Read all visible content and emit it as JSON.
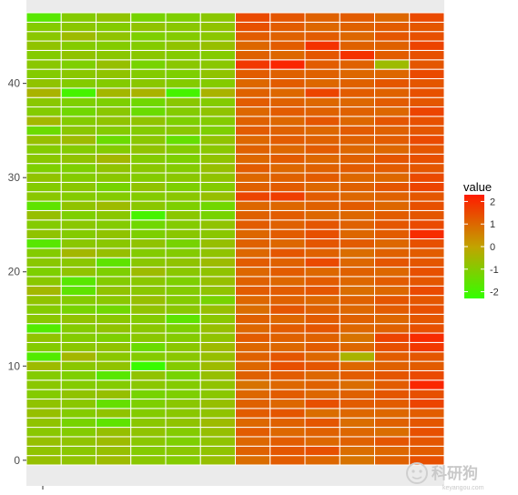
{
  "chart_data": {
    "type": "heatmap",
    "title": "",
    "xlabel": "",
    "ylabel": "",
    "n_columns": 12,
    "n_rows": 48,
    "ylim": [
      -0.5,
      47.5
    ],
    "y_ticks": [
      0,
      10,
      20,
      30,
      40
    ],
    "x_ticks": [
      ""
    ],
    "grid": true,
    "legend": {
      "title": "value",
      "position": "right",
      "limits": [
        -2.3,
        2.3
      ],
      "breaks": [
        2,
        1,
        0,
        -1,
        -2
      ],
      "break_labels": [
        "2",
        "1",
        "0",
        "-1",
        "-2"
      ],
      "colors": {
        "low": "#33ff00",
        "mid": "#c2a300",
        "high": "#ff1a00"
      }
    },
    "column_means": [
      -1,
      -1,
      -0.8,
      -1,
      -1,
      -0.8,
      1.2,
      1.2,
      1.1,
      1.0,
      1.0,
      1.3
    ],
    "row_values": [
      [
        -0.7,
        -0.8,
        -0.6,
        -0.9,
        -1.0,
        -0.7,
        0.9,
        1.2,
        1.0,
        0.8,
        1.1,
        1.4
      ],
      [
        -0.8,
        -0.9,
        -0.7,
        -1.0,
        -0.9,
        -0.8,
        1.1,
        1.3,
        1.4,
        0.9,
        1.0,
        1.2
      ],
      [
        -0.7,
        -0.8,
        -0.6,
        -0.9,
        -1.1,
        -0.8,
        1.0,
        1.2,
        1.0,
        1.1,
        1.3,
        1.3
      ],
      [
        -0.9,
        -1.0,
        -0.7,
        -0.8,
        -1.0,
        -0.7,
        1.2,
        1.0,
        1.1,
        1.0,
        0.9,
        1.4
      ],
      [
        -0.8,
        -1.2,
        -1.6,
        -0.9,
        -0.8,
        -0.6,
        1.0,
        1.1,
        1.3,
        0.9,
        1.1,
        1.3
      ],
      [
        -0.7,
        -1.0,
        -0.8,
        -1.0,
        -0.9,
        -0.8,
        1.2,
        1.3,
        0.9,
        1.0,
        1.0,
        1.2
      ],
      [
        -0.8,
        -0.9,
        -1.5,
        -1.1,
        -0.9,
        -0.7,
        1.1,
        1.0,
        1.4,
        1.2,
        1.2,
        1.6
      ],
      [
        -1.0,
        -0.8,
        -0.7,
        -1.2,
        -1.1,
        -0.9,
        1.0,
        1.2,
        1.0,
        1.1,
        1.3,
        1.4
      ],
      [
        -0.9,
        -1.0,
        -1.0,
        -0.9,
        -1.0,
        -0.8,
        0.8,
        1.0,
        1.1,
        0.9,
        1.2,
        2.1
      ],
      [
        -1.0,
        -1.1,
        -1.7,
        -0.8,
        -1.2,
        -0.7,
        1.1,
        1.2,
        1.0,
        1.2,
        1.3,
        1.5
      ],
      [
        -0.6,
        -0.9,
        -0.8,
        -2.2,
        -1.0,
        -0.6,
        1.0,
        1.4,
        1.3,
        1.0,
        1.1,
        1.2
      ],
      [
        -1.8,
        -0.5,
        -0.9,
        -1.0,
        -0.9,
        -0.7,
        1.1,
        1.3,
        1.0,
        -0.4,
        1.2,
        1.3
      ],
      [
        -1.0,
        -0.9,
        -0.8,
        -1.4,
        -0.9,
        -0.6,
        1.0,
        1.0,
        1.2,
        1.0,
        1.4,
        1.8
      ],
      [
        -0.8,
        -1.0,
        -1.1,
        -0.9,
        -1.0,
        -0.8,
        1.2,
        1.1,
        1.1,
        0.8,
        1.6,
        2.0
      ],
      [
        -1.8,
        -1.0,
        -0.8,
        -0.9,
        -1.1,
        -0.7,
        1.0,
        1.2,
        1.3,
        1.0,
        1.1,
        1.4
      ],
      [
        -0.9,
        -0.8,
        -0.9,
        -1.0,
        -1.6,
        -0.9,
        1.1,
        1.0,
        1.2,
        1.1,
        1.0,
        1.3
      ],
      [
        -1.0,
        -1.2,
        -1.3,
        -0.8,
        -0.9,
        -0.7,
        0.9,
        1.3,
        1.1,
        1.0,
        1.2,
        1.4
      ],
      [
        -0.8,
        -1.0,
        -0.9,
        -0.7,
        -1.0,
        -1.2,
        1.0,
        1.1,
        1.0,
        1.1,
        1.3,
        1.3
      ],
      [
        -0.5,
        -1.6,
        -0.8,
        -0.9,
        -1.0,
        -0.8,
        1.2,
        1.2,
        1.3,
        0.9,
        1.0,
        1.5
      ],
      [
        -0.9,
        -1.7,
        -1.0,
        -0.9,
        -1.1,
        -0.7,
        1.1,
        1.0,
        1.2,
        1.0,
        1.2,
        1.3
      ],
      [
        -1.1,
        -0.8,
        -1.1,
        -0.6,
        -0.9,
        -0.8,
        1.0,
        1.2,
        1.0,
        1.1,
        1.0,
        1.4
      ],
      [
        -0.9,
        -0.9,
        -1.6,
        -0.9,
        -0.8,
        -0.6,
        1.2,
        1.1,
        1.5,
        1.0,
        1.3,
        1.3
      ],
      [
        -1.0,
        -0.5,
        -0.7,
        -1.0,
        -1.0,
        -0.8,
        1.0,
        1.3,
        1.1,
        0.9,
        1.1,
        1.2
      ],
      [
        -1.7,
        -0.9,
        -0.9,
        -0.8,
        -1.2,
        -0.7,
        1.1,
        1.0,
        1.3,
        1.2,
        1.0,
        1.4
      ],
      [
        -0.8,
        -1.0,
        -0.8,
        -1.1,
        -0.9,
        -0.9,
        1.0,
        1.2,
        1.4,
        1.0,
        1.2,
        2.0
      ],
      [
        -1.0,
        -0.9,
        -1.0,
        -1.3,
        -1.0,
        -0.8,
        1.2,
        1.1,
        1.3,
        1.1,
        1.3,
        1.5
      ],
      [
        -0.7,
        -1.1,
        -0.9,
        -2.0,
        -0.9,
        -1.2,
        1.1,
        1.2,
        1.0,
        1.0,
        1.2,
        1.3
      ],
      [
        -1.6,
        -0.8,
        -0.6,
        -0.9,
        -1.1,
        -1.3,
        1.0,
        1.0,
        1.1,
        1.2,
        1.0,
        1.4
      ],
      [
        -0.9,
        -1.0,
        -1.0,
        -1.0,
        -0.9,
        -0.7,
        1.6,
        1.7,
        1.2,
        1.0,
        1.1,
        1.3
      ],
      [
        -1.0,
        -0.9,
        -1.2,
        -0.8,
        -1.1,
        -1.0,
        1.1,
        1.2,
        1.0,
        1.1,
        1.3,
        1.6
      ],
      [
        -0.8,
        -1.0,
        -0.9,
        -1.0,
        -0.9,
        -0.8,
        1.0,
        1.1,
        1.2,
        1.0,
        1.0,
        1.5
      ],
      [
        -1.1,
        -1.1,
        -0.8,
        -0.9,
        -1.0,
        -0.7,
        1.2,
        1.0,
        1.1,
        1.2,
        1.2,
        1.3
      ],
      [
        -0.9,
        -0.8,
        -0.5,
        -1.0,
        -1.1,
        -0.8,
        1.0,
        1.2,
        1.0,
        1.1,
        1.3,
        1.4
      ],
      [
        -1.0,
        -1.0,
        -1.0,
        -0.8,
        -1.0,
        -0.9,
        1.1,
        1.0,
        1.2,
        1.0,
        1.0,
        1.3
      ],
      [
        -0.7,
        -0.6,
        -1.4,
        -0.9,
        -1.5,
        -0.8,
        1.0,
        1.2,
        1.1,
        1.1,
        1.2,
        1.5
      ],
      [
        -1.4,
        -0.9,
        -1.0,
        -1.0,
        -0.9,
        -1.1,
        1.2,
        1.1,
        1.0,
        1.2,
        1.1,
        1.3
      ],
      [
        -0.5,
        -1.0,
        -0.8,
        -0.8,
        -1.1,
        -1.0,
        1.1,
        1.0,
        1.3,
        1.0,
        1.3,
        1.4
      ],
      [
        -1.0,
        -1.3,
        -0.9,
        -1.4,
        -1.0,
        -0.8,
        1.0,
        1.2,
        1.1,
        1.1,
        1.0,
        1.6
      ],
      [
        -0.9,
        -1.1,
        -1.1,
        -1.3,
        -0.9,
        -1.0,
        1.2,
        1.1,
        1.0,
        1.0,
        1.2,
        1.3
      ],
      [
        -0.4,
        -2.0,
        -0.5,
        -0.4,
        -2.0,
        -0.4,
        1.1,
        1.0,
        1.6,
        1.2,
        1.1,
        1.4
      ],
      [
        -0.8,
        -1.0,
        -1.0,
        -0.9,
        -1.0,
        -1.0,
        1.0,
        1.2,
        1.0,
        1.1,
        1.3,
        1.3
      ],
      [
        -1.0,
        -0.9,
        -0.8,
        -1.0,
        -1.1,
        -0.8,
        1.2,
        1.1,
        1.1,
        1.0,
        1.0,
        1.5
      ],
      [
        -0.9,
        -1.1,
        -0.7,
        -1.2,
        -0.9,
        -0.9,
        1.8,
        2.1,
        1.2,
        1.1,
        -0.6,
        1.3
      ],
      [
        -1.0,
        -0.8,
        -0.9,
        -0.9,
        -1.0,
        -1.0,
        1.1,
        1.0,
        1.3,
        1.9,
        1.2,
        1.4
      ],
      [
        -0.8,
        -1.0,
        -1.0,
        -1.0,
        -0.8,
        -0.7,
        1.0,
        1.2,
        1.9,
        1.1,
        1.1,
        1.6
      ],
      [
        -0.9,
        -0.6,
        -0.8,
        -1.1,
        -1.0,
        -0.9,
        1.2,
        1.1,
        1.2,
        1.0,
        1.3,
        1.4
      ],
      [
        -1.0,
        -0.9,
        -1.0,
        -0.8,
        -0.9,
        -0.8,
        1.4,
        1.2,
        1.0,
        1.1,
        1.2,
        1.3
      ],
      [
        -1.7,
        -1.0,
        -0.8,
        -1.2,
        -1.1,
        -0.9,
        1.5,
        1.3,
        1.1,
        1.2,
        1.0,
        1.5
      ]
    ]
  },
  "watermark": {
    "text": "科研狗",
    "subtext": "keyangou.com",
    "icon": "dog-face-icon"
  }
}
